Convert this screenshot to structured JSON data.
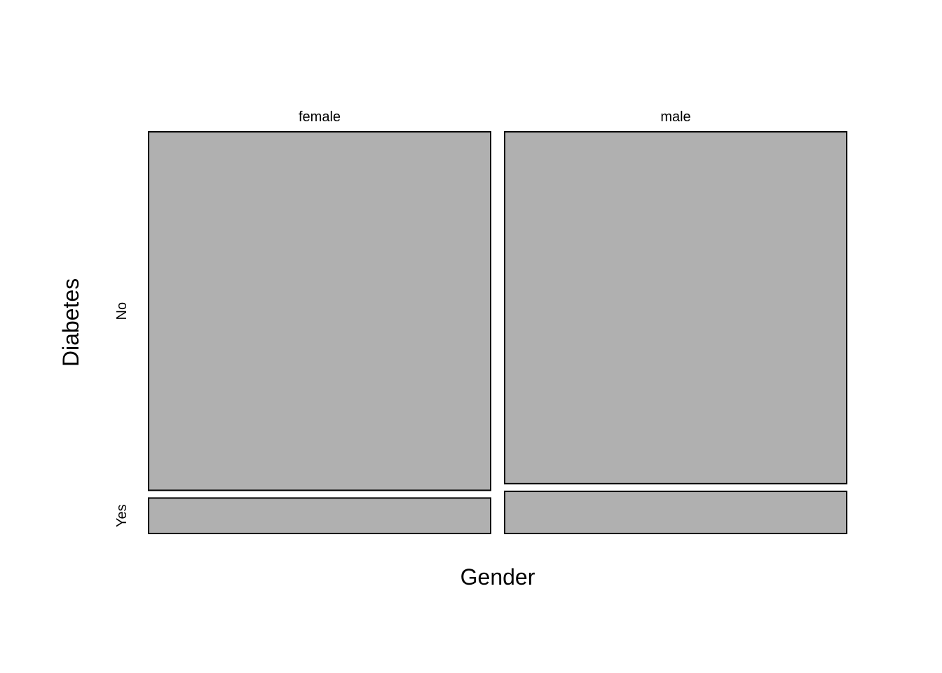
{
  "chart_data": {
    "type": "mosaic",
    "xlabel": "Gender",
    "ylabel": "Diabetes",
    "x_categories": [
      "female",
      "male"
    ],
    "y_categories": [
      "No",
      "Yes"
    ],
    "tile_color": "#b0b0b0",
    "x_proportions": [
      0.5,
      0.5
    ],
    "conditional_proportions": {
      "female": {
        "No": 0.91,
        "Yes": 0.09
      },
      "male": {
        "No": 0.893,
        "Yes": 0.107
      }
    }
  }
}
